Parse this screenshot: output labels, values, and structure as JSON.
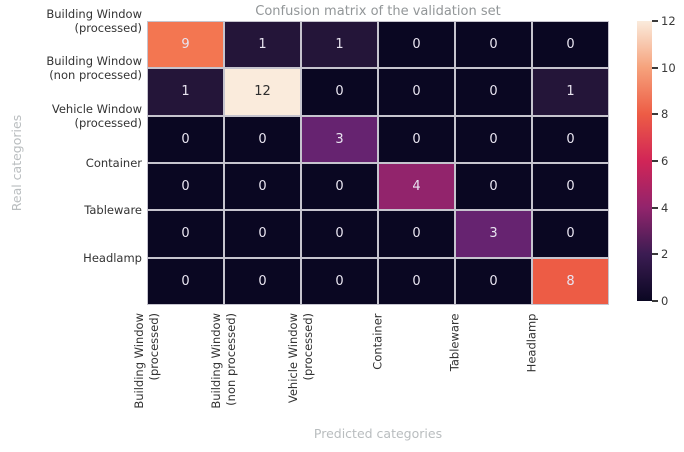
{
  "chart_data": {
    "type": "heatmap",
    "title": "Confusion matrix of the validation set",
    "xlabel": "Predicted categories",
    "ylabel": "Real categories",
    "categories": [
      "Building Window\n(processed)",
      "Building Window\n(non processed)",
      "Vehicle Window\n(processed)",
      "Container",
      "Tableware",
      "Headlamp"
    ],
    "matrix": [
      [
        9,
        1,
        1,
        0,
        0,
        0
      ],
      [
        1,
        12,
        0,
        0,
        0,
        1
      ],
      [
        0,
        0,
        3,
        0,
        0,
        0
      ],
      [
        0,
        0,
        0,
        4,
        0,
        0
      ],
      [
        0,
        0,
        0,
        0,
        3,
        0
      ],
      [
        0,
        0,
        0,
        0,
        0,
        8
      ]
    ],
    "vmin": 0,
    "vmax": 12,
    "colormap": "rocket",
    "colorbar_ticks": [
      0,
      2,
      4,
      6,
      8,
      10,
      12
    ],
    "value_colors": {
      "0": "#0A0722",
      "1": "#241539",
      "3": "#662370",
      "4": "#92246C",
      "8": "#ED5C45",
      "9": "#F37651",
      "12": "#FAEBDC"
    },
    "colorbar_gradient": [
      "#0A0722",
      "#3B1C52",
      "#92246C",
      "#D12557",
      "#ED5C45",
      "#F6A27C",
      "#FAEBDC"
    ],
    "cell_text_light": "#E8E4F0",
    "cell_text_dark": "#2E2E2E",
    "grid_line_color": "#C6C4CE",
    "legend_position": "right"
  },
  "colors": {
    "title": "#929698",
    "tick_label": "#333333",
    "axis_label": "#B9BDBF",
    "background": "#FFFFFF"
  }
}
